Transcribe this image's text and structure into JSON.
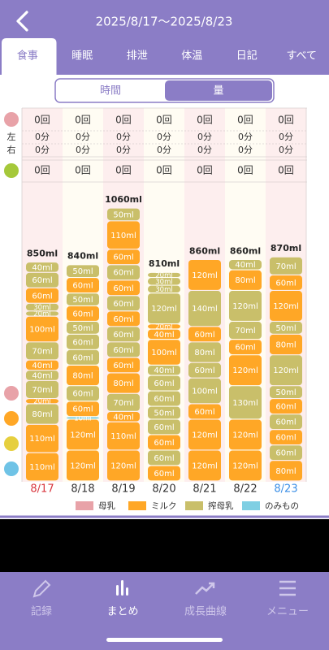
{
  "header": {
    "title": "2025/8/17〜2025/8/23"
  },
  "tabs": [
    "食事",
    "睡眠",
    "排泄",
    "体温",
    "日記",
    "すべて"
  ],
  "toggle": [
    "時間",
    "量"
  ],
  "summary": {
    "side_labels": [
      "左",
      "右"
    ],
    "rows": [
      [
        "0回",
        "0回",
        "0回",
        "0回",
        "0回",
        "0回",
        "0回"
      ],
      [
        "0分",
        "0分",
        "0分",
        "0分",
        "0分",
        "0分",
        "0分"
      ],
      [
        "0分",
        "0分",
        "0分",
        "0分",
        "0分",
        "0分",
        "0分"
      ],
      [
        "0回",
        "0回",
        "0回",
        "0回",
        "0回",
        "0回",
        "0回"
      ]
    ]
  },
  "chart": {
    "type": "stacked-bar",
    "dates": [
      "8/17",
      "8/18",
      "8/19",
      "8/20",
      "8/21",
      "8/22",
      "8/23"
    ],
    "date_colors": [
      "#d8343c",
      "#333333",
      "#333333",
      "#333333",
      "#333333",
      "#333333",
      "#3a8ee6"
    ],
    "totals": [
      "850ml",
      "840ml",
      "1060ml",
      "810ml",
      "860ml",
      "860ml",
      "870ml"
    ],
    "days": [
      {
        "values": [
          110,
          110,
          80,
          20,
          70,
          40,
          40,
          70,
          100,
          20,
          30,
          60,
          60,
          40
        ],
        "value_labels": [
          "110ml",
          "110ml",
          "80ml",
          "20ml",
          "70ml",
          "40ml",
          "40ml",
          "70ml",
          "100ml",
          "20ml",
          "30ml",
          "60ml",
          "60ml",
          "40ml"
        ],
        "colors": [
          "#ffa726",
          "#ffa726",
          "#c9bf6a",
          "#ffa726",
          "#c9bf6a",
          "#c9bf6a",
          "#ffa726",
          "#c9bf6a",
          "#ffa726",
          "#c9bf6a",
          "#c9bf6a",
          "#ffa726",
          "#c9bf6a",
          "#c9bf6a"
        ]
      },
      {
        "values": [
          120,
          120,
          10,
          60,
          60,
          80,
          60,
          60,
          50,
          60,
          50,
          60,
          50
        ],
        "value_labels": [
          "120ml",
          "120ml",
          "10ml",
          "60ml",
          "60ml",
          "80ml",
          "60ml",
          "60ml",
          "50ml",
          "60ml",
          "50ml",
          "60ml",
          "50ml"
        ],
        "colors": [
          "#ffa726",
          "#ffa726",
          "#7fcfe3",
          "#ffa726",
          "#c9bf6a",
          "#ffa726",
          "#c9bf6a",
          "#c9bf6a",
          "#c9bf6a",
          "#ffa726",
          "#c9bf6a",
          "#ffa726",
          "#c9bf6a"
        ]
      },
      {
        "values": [
          120,
          110,
          40,
          70,
          80,
          60,
          60,
          60,
          60,
          60,
          60,
          60,
          60,
          110,
          50
        ],
        "value_labels": [
          "120ml",
          "110ml",
          "40ml",
          "70ml",
          "80ml",
          "60ml",
          "60ml",
          "60ml",
          "60ml",
          "60ml",
          "60ml",
          "60ml",
          "60ml",
          "110ml",
          "50ml"
        ],
        "colors": [
          "#ffa726",
          "#ffa726",
          "#ffa726",
          "#c9bf6a",
          "#ffa726",
          "#ffa726",
          "#c9bf6a",
          "#c9bf6a",
          "#ffa726",
          "#c9bf6a",
          "#ffa726",
          "#c9bf6a",
          "#ffa726",
          "#ffa726",
          "#c9bf6a"
        ]
      },
      {
        "values": [
          60,
          60,
          60,
          60,
          50,
          60,
          60,
          40,
          100,
          40,
          20,
          120,
          30,
          30,
          20
        ],
        "value_labels": [
          "60ml",
          "60ml",
          "60ml",
          "60ml",
          "50ml",
          "60ml",
          "60ml",
          "40ml",
          "100ml",
          "40ml",
          "20ml",
          "120ml",
          "30ml",
          "30ml",
          "20ml"
        ],
        "colors": [
          "#ffa726",
          "#c9bf6a",
          "#ffa726",
          "#c9bf6a",
          "#c9bf6a",
          "#c9bf6a",
          "#c9bf6a",
          "#c9bf6a",
          "#ffa726",
          "#ffa726",
          "#ffa726",
          "#c9bf6a",
          "#c9bf6a",
          "#c9bf6a",
          "#c9bf6a"
        ]
      },
      {
        "values": [
          120,
          120,
          60,
          100,
          60,
          80,
          60,
          140,
          120
        ],
        "value_labels": [
          "120ml",
          "120ml",
          "60ml",
          "100ml",
          "60ml",
          "80ml",
          "60ml",
          "140ml",
          "120ml"
        ],
        "colors": [
          "#ffa726",
          "#ffa726",
          "#ffa726",
          "#c9bf6a",
          "#c9bf6a",
          "#c9bf6a",
          "#ffa726",
          "#c9bf6a",
          "#ffa726"
        ]
      },
      {
        "values": [
          120,
          120,
          130,
          120,
          60,
          70,
          120,
          80,
          40
        ],
        "value_labels": [
          "120ml",
          "120ml",
          "130ml",
          "120ml",
          "60ml",
          "70ml",
          "120ml",
          "80ml",
          "40ml"
        ],
        "colors": [
          "#ffa726",
          "#ffa726",
          "#c9bf6a",
          "#ffa726",
          "#ffa726",
          "#c9bf6a",
          "#c9bf6a",
          "#ffa726",
          "#c9bf6a"
        ]
      },
      {
        "values": [
          80,
          60,
          60,
          60,
          60,
          50,
          120,
          80,
          50,
          120,
          60,
          70
        ],
        "value_labels": [
          "80ml",
          "60ml",
          "60ml",
          "60ml",
          "60ml",
          "50ml",
          "120ml",
          "80ml",
          "50ml",
          "120ml",
          "60ml",
          "70ml"
        ],
        "colors": [
          "#ffa726",
          "#c9bf6a",
          "#ffa726",
          "#c9bf6a",
          "#ffa726",
          "#c9bf6a",
          "#c9bf6a",
          "#ffa726",
          "#c9bf6a",
          "#ffa726",
          "#ffa726",
          "#c9bf6a"
        ]
      }
    ],
    "legend": [
      {
        "name": "母乳",
        "color": "#e8a2a8"
      },
      {
        "name": "ミルク",
        "color": "#ffa726"
      },
      {
        "name": "搾母乳",
        "color": "#c9bf6a"
      },
      {
        "name": "のみもの",
        "color": "#7fcfe3"
      }
    ]
  },
  "nav": [
    "記録",
    "まとめ",
    "成長曲線",
    "メニュー"
  ]
}
